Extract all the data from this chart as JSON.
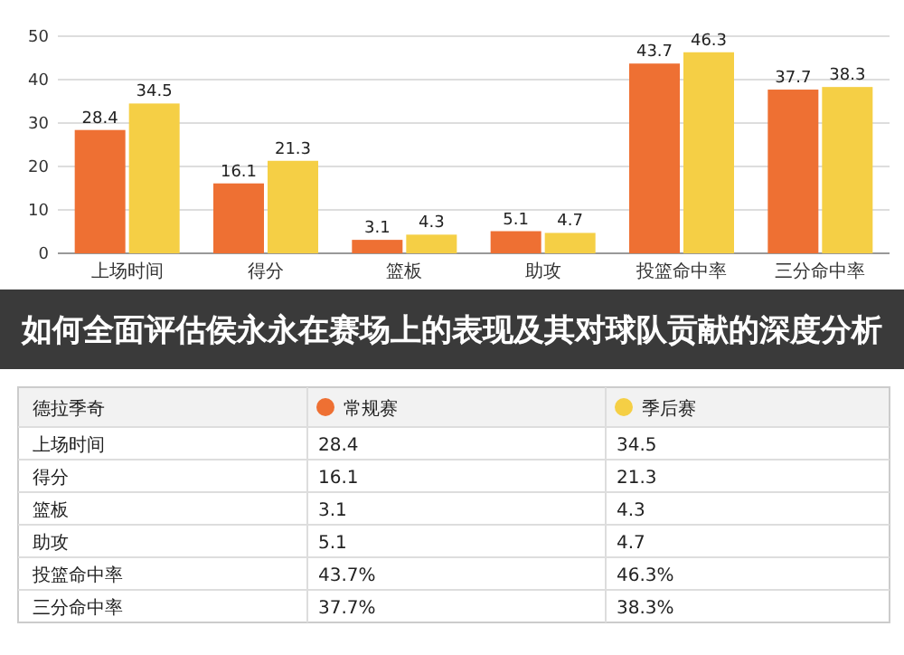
{
  "chart_data": [
    {
      "type": "bar",
      "title": "如何全面评估侯永永在赛场上的表现及其对球队贡献的深度分析",
      "categories": [
        "上场时间",
        "得分",
        "篮板",
        "助攻",
        "投篮命中率",
        "三分命中率"
      ],
      "series": [
        {
          "color": "#ee7033",
          "values": [
            28.4,
            16.1,
            3.1,
            5.1,
            43.7,
            37.7
          ]
        },
        {
          "color": "#f5cf45",
          "values": [
            34.5,
            21.3,
            4.3,
            4.7,
            46.3,
            38.3
          ]
        }
      ],
      "ylim": [
        0,
        50
      ],
      "yticks": [
        0,
        10,
        20,
        30,
        40,
        50
      ],
      "grid": "y",
      "data_labels": true
    },
    {
      "type": "other",
      "legend_title": "德拉季奇",
      "legend": "top",
      "categories": [
        "上场时间",
        "得分",
        "篮板",
        "助攻",
        "投篮命中率",
        "三分命中率"
      ],
      "series": [
        {
          "name": "常规赛",
          "color": "#ee7033",
          "values": [
            28.4,
            16.1,
            3.1,
            5.1,
            43.7,
            37.7
          ],
          "value_labels": [
            "28.4",
            "16.1",
            "3.1",
            "5.1",
            "43.7%",
            "37.7%"
          ]
        },
        {
          "name": "季后赛",
          "color": "#f5cf45",
          "values": [
            34.5,
            21.3,
            4.3,
            4.7,
            46.3,
            38.3
          ],
          "value_labels": [
            "34.5",
            "21.3",
            "4.3",
            "4.7",
            "46.3%",
            "38.3%"
          ]
        }
      ]
    }
  ]
}
